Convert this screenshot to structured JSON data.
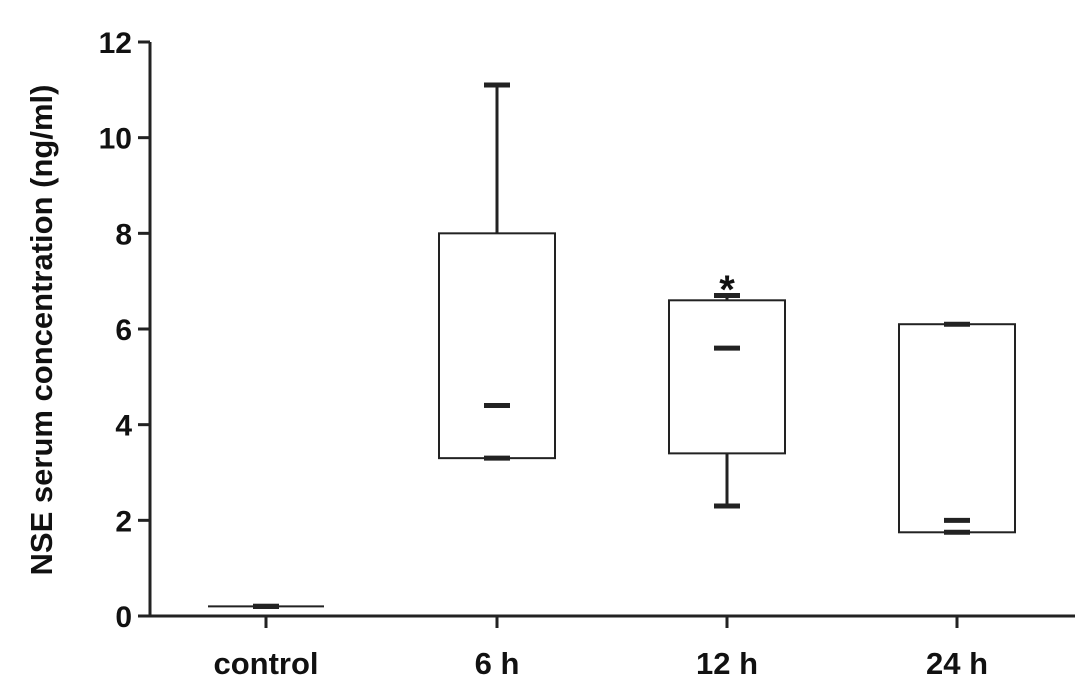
{
  "chart_data": {
    "type": "box",
    "title": "",
    "xlabel": "",
    "ylabel": "NSE serum concentration (ng/ml)",
    "ylim": [
      0,
      12
    ],
    "yticks": [
      0,
      2,
      4,
      6,
      8,
      10,
      12
    ],
    "yticklabels": [
      "0",
      "2",
      "4",
      "6",
      "8",
      "10",
      "12"
    ],
    "grid": false,
    "categories": [
      "control",
      "6 h",
      "12 h",
      "24 h"
    ],
    "boxes": [
      {
        "category": "control",
        "min": 0.2,
        "q1": 0.2,
        "median": 0.2,
        "q3": 0.2,
        "max": 0.2
      },
      {
        "category": "6 h",
        "min": 3.3,
        "q1": 3.3,
        "median": 4.4,
        "q3": 8.0,
        "max": 11.1
      },
      {
        "category": "12 h",
        "min": 2.3,
        "q1": 3.4,
        "median": 5.6,
        "q3": 6.6,
        "max": 6.7
      },
      {
        "category": "24 h",
        "min": 1.75,
        "q1": 1.75,
        "median": 2.0,
        "q3": 6.1,
        "max": 6.1
      }
    ],
    "annotations": [
      {
        "category": "12 h",
        "text": "*",
        "y": 7.0
      }
    ]
  }
}
